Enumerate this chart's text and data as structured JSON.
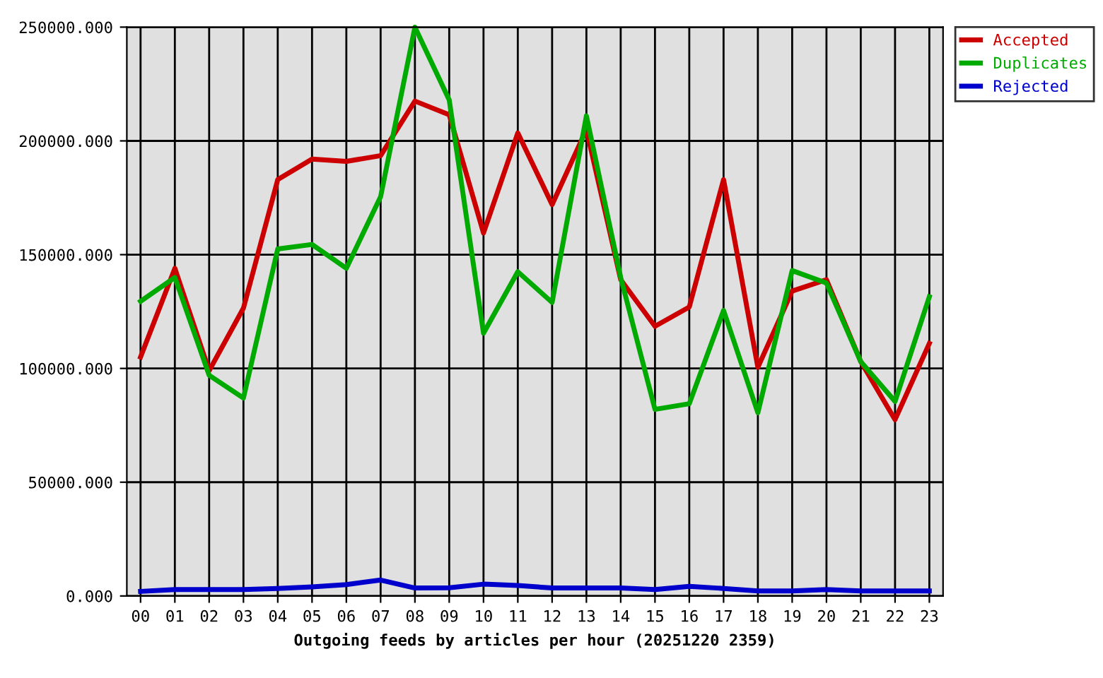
{
  "chart_data": {
    "type": "line",
    "xlabel": "Outgoing feeds by articles per hour (20251220 2359)",
    "categories": [
      "00",
      "01",
      "02",
      "03",
      "04",
      "05",
      "06",
      "07",
      "08",
      "09",
      "10",
      "11",
      "12",
      "13",
      "14",
      "15",
      "16",
      "17",
      "18",
      "19",
      "20",
      "21",
      "22",
      "23"
    ],
    "series": [
      {
        "name": "Accepted",
        "color": "#cc0000",
        "values": [
          105000,
          144000,
          99000,
          126500,
          183000,
          192000,
          191000,
          193500,
          217500,
          211500,
          159500,
          203500,
          172000,
          205000,
          139000,
          118500,
          127000,
          183000,
          100500,
          134000,
          139000,
          103000,
          77500,
          111000
        ]
      },
      {
        "name": "Duplicates",
        "color": "#00aa00",
        "values": [
          129500,
          140000,
          97000,
          87000,
          152500,
          154500,
          144000,
          175500,
          250000,
          218000,
          115500,
          142500,
          129000,
          211000,
          140000,
          82000,
          84500,
          125500,
          80500,
          143000,
          137500,
          103000,
          85500,
          131500
        ]
      },
      {
        "name": "Rejected",
        "color": "#0000cc",
        "values": [
          2000,
          2800,
          2800,
          2800,
          3300,
          4000,
          5000,
          7000,
          3500,
          3600,
          5200,
          4600,
          3500,
          3500,
          3500,
          2800,
          4200,
          3300,
          2200,
          2200,
          2800,
          2200,
          2200,
          2200
        ]
      }
    ],
    "ylim": [
      0,
      250000
    ],
    "yticks": [
      {
        "value": 0,
        "label": "0.000"
      },
      {
        "value": 50000,
        "label": "50000.000"
      },
      {
        "value": 100000,
        "label": "100000.000"
      },
      {
        "value": 150000,
        "label": "150000.000"
      },
      {
        "value": 200000,
        "label": "200000.000"
      },
      {
        "value": 250000,
        "label": "250000.000"
      }
    ],
    "grid": true,
    "legend": "top right",
    "line_style": "solid"
  }
}
